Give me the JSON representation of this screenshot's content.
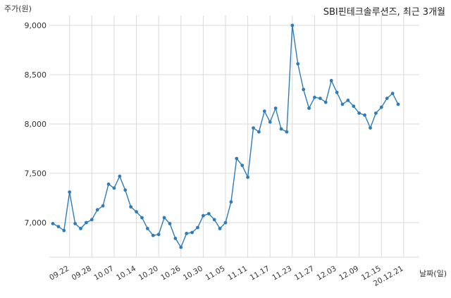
{
  "chart_data": {
    "type": "line",
    "title": "SBI핀테크솔루션즈, 최근 3개월",
    "ylabel": "주가(원)",
    "xlabel": "날짜(일)",
    "ylim": [
      6650,
      9100
    ],
    "yticks": [
      7000,
      7500,
      8000,
      8500,
      9000
    ],
    "ytick_labels": [
      "7,000",
      "7,500",
      "8,000",
      "8,500",
      "9,000"
    ],
    "grid": true,
    "xticks": [
      {
        "index": 3,
        "label": "09.22"
      },
      {
        "index": 7,
        "label": "09.28"
      },
      {
        "index": 11,
        "label": "10.07"
      },
      {
        "index": 15,
        "label": "10.14"
      },
      {
        "index": 19,
        "label": "10.20"
      },
      {
        "index": 23,
        "label": "10.26"
      },
      {
        "index": 27,
        "label": "10.30"
      },
      {
        "index": 31,
        "label": "11.05"
      },
      {
        "index": 35,
        "label": "11.11"
      },
      {
        "index": 39,
        "label": "11.17"
      },
      {
        "index": 43,
        "label": "11.23"
      },
      {
        "index": 47,
        "label": "11.27"
      },
      {
        "index": 51,
        "label": "12.03"
      },
      {
        "index": 55,
        "label": "12.09"
      },
      {
        "index": 59,
        "label": "12.15"
      },
      {
        "index": 63,
        "label": "20.12.21"
      }
    ],
    "series": [
      {
        "color": "#2e7cb8",
        "values": [
          6990,
          6960,
          6920,
          7310,
          6990,
          6940,
          7000,
          7030,
          7130,
          7170,
          7390,
          7350,
          7470,
          7330,
          7160,
          7110,
          7050,
          6940,
          6870,
          6880,
          7050,
          6990,
          6840,
          6750,
          6890,
          6900,
          6950,
          7070,
          7090,
          7030,
          6940,
          7000,
          7210,
          7650,
          7580,
          7460,
          7960,
          7920,
          8130,
          8020,
          8160,
          7950,
          7920,
          9000,
          8610,
          8350,
          8160,
          8270,
          8260,
          8220,
          8440,
          8320,
          8200,
          8240,
          8180,
          8110,
          8090,
          7960,
          8110,
          8170,
          8260,
          8310,
          8200
        ]
      }
    ]
  }
}
